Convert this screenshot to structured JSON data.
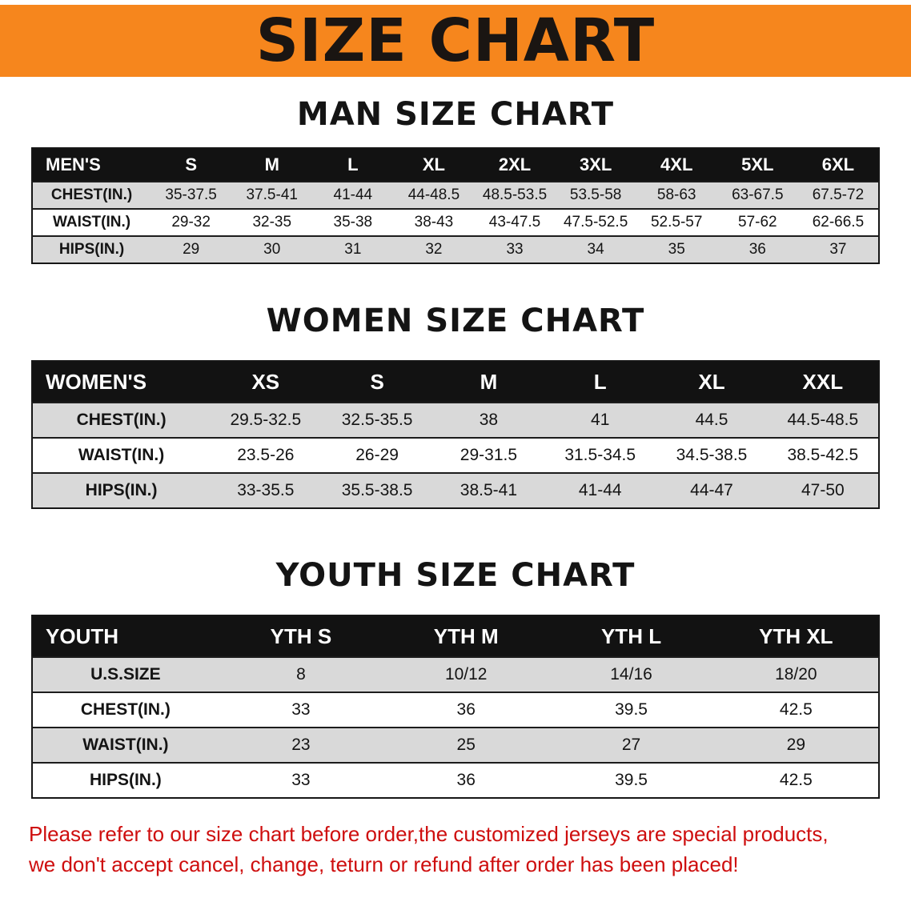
{
  "banner": {
    "title": "SIZE CHART"
  },
  "chart_data": [
    {
      "type": "table",
      "title": "MAN SIZE CHART",
      "columns": [
        "MEN'S",
        "S",
        "M",
        "L",
        "XL",
        "2XL",
        "3XL",
        "4XL",
        "5XL",
        "6XL"
      ],
      "rows": [
        [
          "CHEST(IN.)",
          "35-37.5",
          "37.5-41",
          "41-44",
          "44-48.5",
          "48.5-53.5",
          "53.5-58",
          "58-63",
          "63-67.5",
          "67.5-72"
        ],
        [
          "WAIST(IN.)",
          "29-32",
          "32-35",
          "35-38",
          "38-43",
          "43-47.5",
          "47.5-52.5",
          "52.5-57",
          "57-62",
          "62-66.5"
        ],
        [
          "HIPS(IN.)",
          "29",
          "30",
          "31",
          "32",
          "33",
          "34",
          "35",
          "36",
          "37"
        ]
      ]
    },
    {
      "type": "table",
      "title": "WOMEN SIZE CHART",
      "columns": [
        "WOMEN'S",
        "XS",
        "S",
        "M",
        "L",
        "XL",
        "XXL"
      ],
      "rows": [
        [
          "CHEST(IN.)",
          "29.5-32.5",
          "32.5-35.5",
          "38",
          "41",
          "44.5",
          "44.5-48.5"
        ],
        [
          "WAIST(IN.)",
          "23.5-26",
          "26-29",
          "29-31.5",
          "31.5-34.5",
          "34.5-38.5",
          "38.5-42.5"
        ],
        [
          "HIPS(IN.)",
          "33-35.5",
          "35.5-38.5",
          "38.5-41",
          "41-44",
          "44-47",
          "47-50"
        ]
      ]
    },
    {
      "type": "table",
      "title": "YOUTH SIZE CHART",
      "columns": [
        "YOUTH",
        "YTH S",
        "YTH M",
        "YTH L",
        "YTH XL"
      ],
      "rows": [
        [
          "U.S.SIZE",
          "8",
          "10/12",
          "14/16",
          "18/20"
        ],
        [
          "CHEST(IN.)",
          "33",
          "36",
          "39.5",
          "42.5"
        ],
        [
          "WAIST(IN.)",
          "23",
          "25",
          "27",
          "29"
        ],
        [
          "HIPS(IN.)",
          "33",
          "36",
          "39.5",
          "42.5"
        ]
      ]
    }
  ],
  "disclaimer": {
    "line1": "Please refer to our size chart before order,the customized jerseys are special products,",
    "line2": "we don't accept cancel, change, teturn or refund after order has been placed!"
  },
  "theme": {
    "banner-bg": "#F6861D",
    "banner-text": "#1A1512",
    "header-bg": "#121212",
    "header-text": "#FFFFFF",
    "row-alt-bg": "#D9D9D9",
    "row-bg": "#FFFFFF",
    "body-text": "#141414",
    "disclaimer-text": "#CE0E0E"
  }
}
